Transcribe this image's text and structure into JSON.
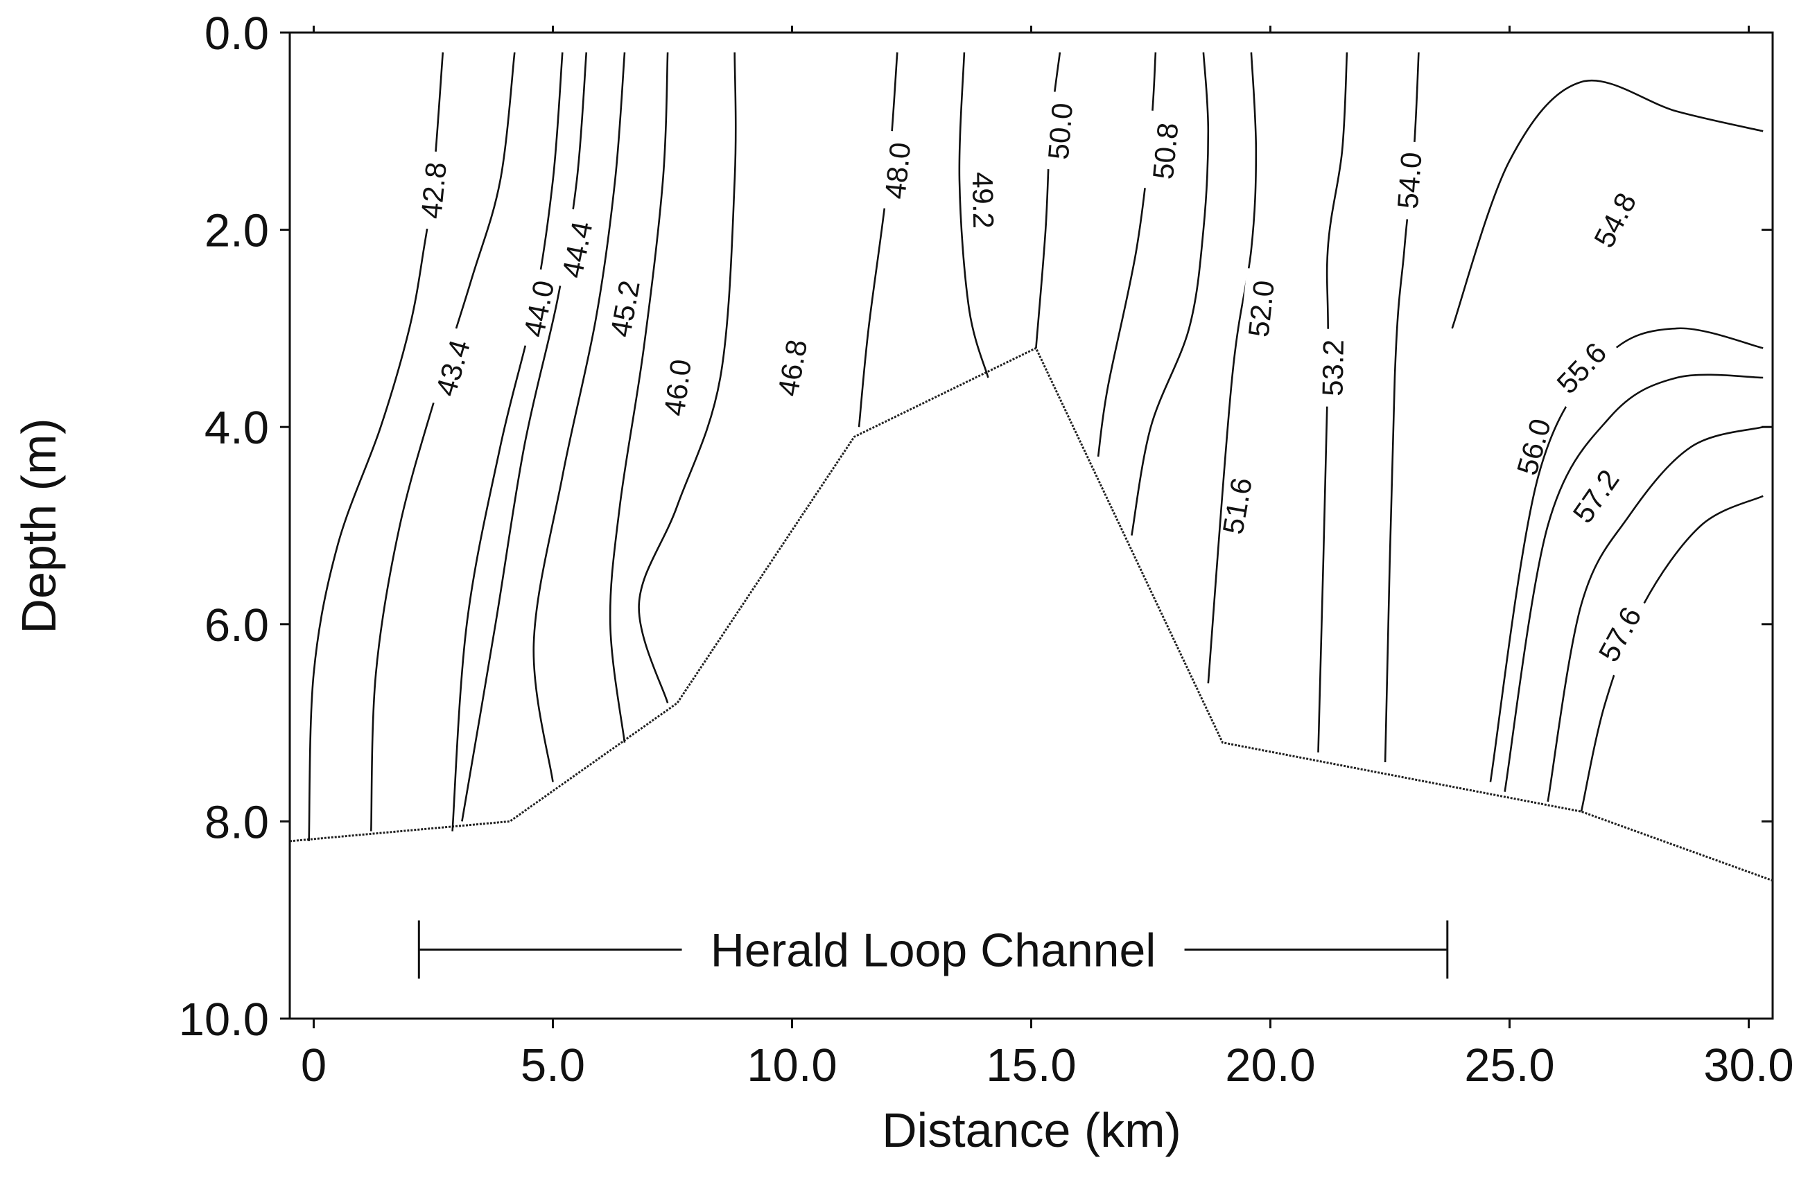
{
  "chart_data": {
    "type": "contour",
    "xlabel": "Distance (km)",
    "ylabel": "Depth (m)",
    "xlim": [
      -0.5,
      30.5
    ],
    "ylim": [
      0,
      10
    ],
    "y_inverted": true,
    "x_ticks": [
      0,
      5,
      10,
      15,
      20,
      25,
      30
    ],
    "x_tick_labels": [
      "0",
      "5.0",
      "10.0",
      "15.0",
      "20.0",
      "25.0",
      "30.0"
    ],
    "y_ticks": [
      0,
      2,
      4,
      6,
      8,
      10
    ],
    "y_tick_labels": [
      "0.0",
      "2.0",
      "4.0",
      "6.0",
      "8.0",
      "10.0"
    ],
    "grid": false,
    "contour_interval": 0.4,
    "contour_range": [
      42.8,
      57.6
    ],
    "bottom_profile": {
      "x": [
        -0.5,
        4.1,
        7.6,
        11.3,
        15.1,
        19.0,
        26.5,
        30.5
      ],
      "depth": [
        8.2,
        8.0,
        6.8,
        4.1,
        3.2,
        7.2,
        7.9,
        8.6
      ]
    },
    "contours": [
      {
        "value": 42.8,
        "x": [
          2.7,
          2.5,
          2.3,
          2.0,
          1.4,
          0.5,
          0.0,
          -0.1
        ],
        "depth": [
          0.2,
          1.5,
          2.2,
          3.0,
          4.0,
          5.2,
          6.5,
          8.2
        ],
        "label": "42.8",
        "label_at": [
          2.5,
          1.6
        ]
      },
      {
        "value": 43.4,
        "x": [
          4.2,
          3.9,
          3.3,
          2.6,
          1.8,
          1.3,
          1.2
        ],
        "depth": [
          0.2,
          1.5,
          2.5,
          3.6,
          5.0,
          6.5,
          8.1
        ],
        "label": "43.4",
        "label_at": [
          2.9,
          3.4
        ]
      },
      {
        "value": 44.0,
        "x": [
          5.2,
          5.0,
          4.6,
          3.9,
          3.2,
          2.9
        ],
        "depth": [
          0.2,
          1.5,
          2.8,
          4.2,
          6.0,
          8.1
        ],
        "label": "44.0",
        "label_at": [
          4.7,
          2.8
        ]
      },
      {
        "value": 44.4,
        "x": [
          5.7,
          5.5,
          5.1,
          4.4,
          3.8,
          3.1
        ],
        "depth": [
          0.2,
          1.5,
          2.7,
          4.2,
          6.0,
          8.0
        ],
        "label": "44.4",
        "label_at": [
          5.5,
          2.2
        ]
      },
      {
        "value": 45.2,
        "x": [
          6.5,
          6.3,
          5.9,
          5.2,
          4.6,
          5.0
        ],
        "depth": [
          0.2,
          1.5,
          2.9,
          4.5,
          6.2,
          7.6
        ],
        "label": "45.2",
        "label_at": [
          6.5,
          2.8
        ]
      },
      {
        "value": 46.0,
        "x": [
          7.4,
          7.3,
          6.9,
          6.4,
          6.2,
          6.5
        ],
        "depth": [
          0.2,
          1.5,
          3.2,
          4.8,
          6.0,
          7.2
        ],
        "label": "46.0",
        "label_at": [
          7.6,
          3.6
        ]
      },
      {
        "value": 46.8,
        "x": [
          8.8,
          8.8,
          8.5,
          7.6,
          6.8,
          7.4
        ],
        "depth": [
          0.2,
          1.5,
          3.5,
          4.8,
          5.8,
          6.8
        ],
        "label": "46.8",
        "label_at": [
          10.0,
          3.4
        ]
      },
      {
        "value": 48.0,
        "x": [
          12.2,
          12.0,
          11.6,
          11.4
        ],
        "depth": [
          0.2,
          1.5,
          3.0,
          4.0
        ],
        "label": "48.0",
        "label_at": [
          12.2,
          1.4
        ]
      },
      {
        "value": 49.2,
        "x": [
          13.6,
          13.5,
          13.7,
          14.1
        ],
        "depth": [
          0.2,
          1.5,
          2.8,
          3.5
        ],
        "label": "49.2",
        "label_at": [
          14.0,
          1.7
        ]
      },
      {
        "value": 50.0,
        "x": [
          15.6,
          15.4,
          15.3,
          15.1
        ],
        "depth": [
          0.2,
          1.0,
          2.0,
          3.2
        ],
        "label": "50.0",
        "label_at": [
          15.6,
          1.0
        ]
      },
      {
        "value": 50.8,
        "x": [
          17.6,
          17.5,
          17.2,
          16.6,
          16.4
        ],
        "depth": [
          0.2,
          1.0,
          2.2,
          3.6,
          4.3
        ],
        "label": "50.8",
        "label_at": [
          17.8,
          1.2
        ]
      },
      {
        "value": 51.6,
        "x": [
          18.6,
          18.7,
          18.6,
          18.3,
          17.5,
          17.1
        ],
        "depth": [
          0.2,
          1.0,
          2.0,
          3.0,
          4.0,
          5.1
        ],
        "label": "51.6",
        "label_at": [
          19.3,
          4.8
        ]
      },
      {
        "value": 52.0,
        "x": [
          19.6,
          19.7,
          19.6,
          19.2,
          18.7
        ],
        "depth": [
          0.2,
          1.2,
          2.2,
          3.5,
          6.6
        ],
        "label": "52.0",
        "label_at": [
          19.8,
          2.8
        ]
      },
      {
        "value": 53.2,
        "x": [
          21.6,
          21.5,
          21.2,
          21.2,
          21.0
        ],
        "depth": [
          0.2,
          1.2,
          2.2,
          3.5,
          7.3
        ],
        "label": "53.2",
        "label_at": [
          21.3,
          3.4
        ]
      },
      {
        "value": 54.0,
        "x": [
          23.1,
          23.0,
          22.8,
          22.6,
          22.4
        ],
        "depth": [
          0.2,
          1.2,
          2.2,
          3.5,
          7.4
        ],
        "label": "54.0",
        "label_at": [
          22.9,
          1.5
        ]
      },
      {
        "value": 54.8,
        "x": [
          23.8,
          25.0,
          26.5,
          28.5,
          30.3
        ],
        "depth": [
          3.0,
          1.3,
          0.5,
          0.8,
          1.0
        ],
        "label": "54.8",
        "label_at": [
          27.2,
          1.9
        ]
      },
      {
        "value": 55.6,
        "x": [
          24.6,
          25.6,
          27.0,
          28.5,
          30.3
        ],
        "depth": [
          7.6,
          4.5,
          3.3,
          3.0,
          3.2
        ],
        "label": "55.6",
        "label_at": [
          26.5,
          3.4
        ]
      },
      {
        "value": 56.0,
        "x": [
          24.9,
          25.8,
          27.1,
          28.5,
          30.3
        ],
        "depth": [
          7.7,
          5.0,
          3.9,
          3.5,
          3.5
        ],
        "label": "56.0",
        "label_at": [
          25.5,
          4.2
        ]
      },
      {
        "value": 57.2,
        "x": [
          25.8,
          26.5,
          27.5,
          28.8,
          30.3
        ],
        "depth": [
          7.8,
          5.8,
          4.9,
          4.2,
          4.0
        ],
        "label": "57.2",
        "label_at": [
          26.8,
          4.7
        ]
      },
      {
        "value": 57.6,
        "x": [
          26.5,
          27.0,
          27.8,
          29.0,
          30.3
        ],
        "depth": [
          7.9,
          6.8,
          5.8,
          5.0,
          4.7
        ],
        "label": "57.6",
        "label_at": [
          27.3,
          6.1
        ]
      }
    ],
    "annotation": {
      "text": "Herald Loop Channel",
      "x_range": [
        2.2,
        23.7
      ],
      "depth": 9.3
    }
  }
}
